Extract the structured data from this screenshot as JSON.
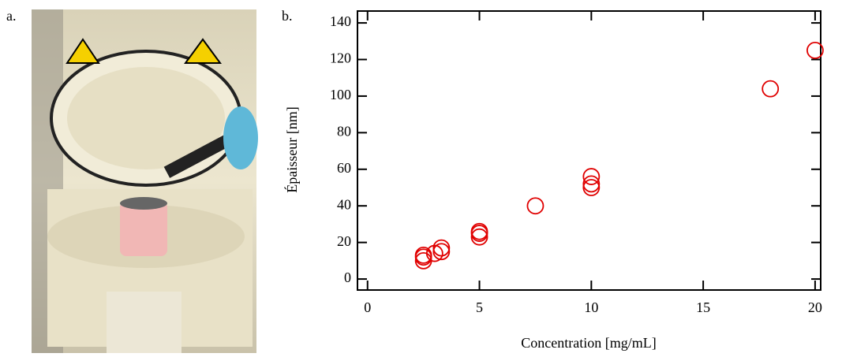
{
  "panels": [
    "a.",
    "b."
  ],
  "chart_data": {
    "type": "scatter",
    "xlabel": "Concentration [mg/mL]",
    "ylabel": "Épaisseur [nm]",
    "x": [
      2.5,
      2.5,
      2.5,
      3,
      3.3,
      3.3,
      5,
      5,
      5,
      7.5,
      10,
      10,
      10,
      18,
      20
    ],
    "values": [
      10,
      12,
      13,
      14,
      15,
      17,
      23,
      25,
      26,
      40,
      50,
      52,
      56,
      104,
      125
    ],
    "color": "#e00000",
    "xlim": [
      -0.45,
      20.25
    ],
    "ylim": [
      -6,
      146.5
    ],
    "xticks": [
      0,
      5,
      10,
      15,
      20
    ],
    "yticks": [
      0,
      20,
      40,
      60,
      80,
      100,
      120,
      140
    ]
  }
}
